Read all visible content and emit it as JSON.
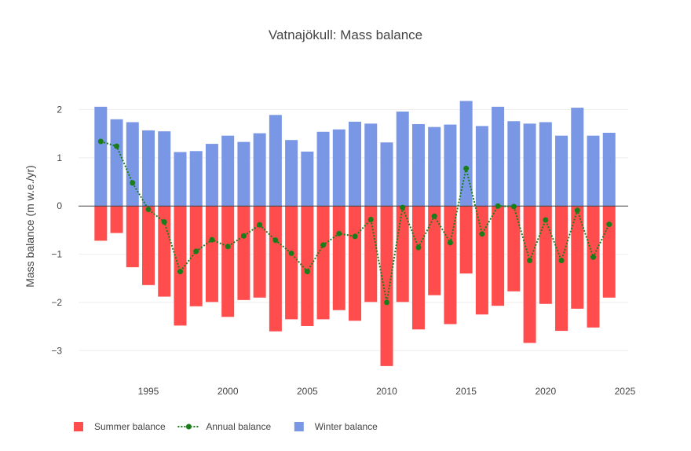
{
  "chart_data": {
    "type": "bar",
    "title": "Vatnajökull: Mass balance",
    "xlabel": "",
    "ylabel": "Mass balance (m w.e./yr)",
    "xlim": [
      1990.6,
      2025.2
    ],
    "ylim": [
      -3.55,
      2.4
    ],
    "x_ticks": [
      1995,
      2000,
      2005,
      2010,
      2015,
      2020,
      2025
    ],
    "y_ticks": [
      -3,
      -2,
      -1,
      0,
      1,
      2
    ],
    "y_tick_labels": [
      "−3",
      "−2",
      "−1",
      "0",
      "1",
      "2"
    ],
    "x": [
      1992,
      1993,
      1994,
      1995,
      1996,
      1997,
      1998,
      1999,
      2000,
      2001,
      2002,
      2003,
      2004,
      2005,
      2006,
      2007,
      2008,
      2009,
      2010,
      2011,
      2012,
      2013,
      2014,
      2015,
      2016,
      2017,
      2018,
      2019,
      2020,
      2021,
      2022,
      2023,
      2024
    ],
    "series": [
      {
        "name": "Winter balance",
        "type": "bar",
        "color": "#7a97e6",
        "values": [
          2.06,
          1.8,
          1.74,
          1.57,
          1.55,
          1.12,
          1.14,
          1.29,
          1.46,
          1.33,
          1.51,
          1.89,
          1.37,
          1.13,
          1.54,
          1.59,
          1.75,
          1.71,
          1.32,
          1.96,
          1.7,
          1.64,
          1.69,
          2.18,
          1.66,
          2.06,
          1.76,
          1.71,
          1.74,
          1.46,
          2.04,
          1.46,
          1.52
        ]
      },
      {
        "name": "Summer balance",
        "type": "bar",
        "color": "#ff4d4d",
        "values": [
          -0.72,
          -0.56,
          -1.27,
          -1.64,
          -1.88,
          -2.48,
          -2.08,
          -1.99,
          -2.3,
          -1.95,
          -1.9,
          -2.6,
          -2.35,
          -2.49,
          -2.35,
          -2.16,
          -2.38,
          -1.99,
          -3.32,
          -1.99,
          -2.56,
          -1.85,
          -2.45,
          -1.4,
          -2.25,
          -2.07,
          -1.77,
          -2.84,
          -2.03,
          -2.59,
          -2.13,
          -2.52,
          -1.9
        ]
      },
      {
        "name": "Annual balance",
        "type": "line",
        "style": "dotted-with-markers",
        "color": "#1a7d1a",
        "values": [
          1.34,
          1.24,
          0.48,
          -0.07,
          -0.33,
          -1.36,
          -0.94,
          -0.7,
          -0.84,
          -0.62,
          -0.39,
          -0.71,
          -0.98,
          -1.36,
          -0.81,
          -0.57,
          -0.63,
          -0.28,
          -2.0,
          -0.03,
          -0.86,
          -0.21,
          -0.76,
          0.78,
          -0.58,
          0.0,
          -0.01,
          -1.13,
          -0.29,
          -1.13,
          -0.09,
          -1.06,
          -0.38
        ]
      }
    ],
    "legend": {
      "placement": "bottom-left",
      "entries": [
        "Summer balance",
        "Annual balance",
        "Winter balance"
      ]
    },
    "grid": true
  }
}
